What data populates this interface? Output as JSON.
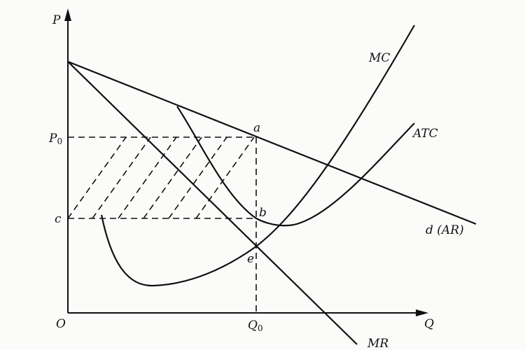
{
  "diagram": {
    "axes": {
      "y_label": "P",
      "x_label": "Q",
      "origin_label": "O"
    },
    "price_labels": {
      "p0_main": "P",
      "p0_sub": "0",
      "c": "c"
    },
    "quantity_labels": {
      "q0_main": "Q",
      "q0_sub": "0"
    },
    "points": {
      "a": "a",
      "b": "b",
      "e": "e"
    },
    "curves": {
      "mc": "MC",
      "atc": "ATC",
      "demand": "d (AR)",
      "mr": "MR"
    },
    "shaded_region": "profit rectangle between P0 and c up to Q0 (hatched)",
    "colors": {
      "ink": "#111111",
      "background": "#fbfbfa"
    }
  }
}
